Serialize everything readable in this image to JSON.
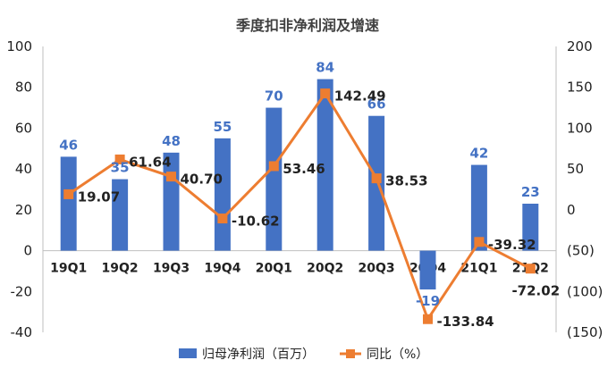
{
  "chart_data": {
    "type": "bar+line",
    "title": "季度扣非净利润及增速",
    "categories": [
      "19Q1",
      "19Q2",
      "19Q3",
      "19Q4",
      "20Q1",
      "20Q2",
      "20Q3",
      "20Q4",
      "21Q1",
      "21Q2"
    ],
    "series": [
      {
        "name": "归母净利润（百万）",
        "type": "bar",
        "axis": "left",
        "color": "#4472C4",
        "values": [
          46,
          35,
          48,
          55,
          70,
          84,
          66,
          -19,
          42,
          23
        ],
        "labels": [
          "46",
          "35",
          "48",
          "55",
          "70",
          "84",
          "66",
          "-19",
          "42",
          "23"
        ]
      },
      {
        "name": "同比（%）",
        "type": "line",
        "axis": "right",
        "color": "#ED7D31",
        "values": [
          19.07,
          61.64,
          40.7,
          -10.62,
          53.46,
          142.49,
          38.53,
          -133.84,
          -39.32,
          -72.02
        ],
        "labels": [
          "19.07",
          "61.64",
          "40.70",
          "-10.62",
          "53.46",
          "142.49",
          "38.53",
          "-133.84",
          "-39.32",
          "-72.02"
        ]
      }
    ],
    "y_left": {
      "min": -40,
      "max": 100,
      "ticks": [
        "-40",
        "-20",
        "0",
        "20",
        "40",
        "60",
        "80",
        "100"
      ],
      "tick_values": [
        -40,
        -20,
        0,
        20,
        40,
        60,
        80,
        100
      ]
    },
    "y_right": {
      "min": -150,
      "max": 200,
      "ticks": [
        "(150)",
        "(100)",
        "(50)",
        "0",
        "50",
        "100",
        "150",
        "200"
      ],
      "tick_values": [
        -150,
        -100,
        -50,
        0,
        50,
        100,
        150,
        200
      ]
    },
    "grid": false,
    "legend": "bottom"
  }
}
